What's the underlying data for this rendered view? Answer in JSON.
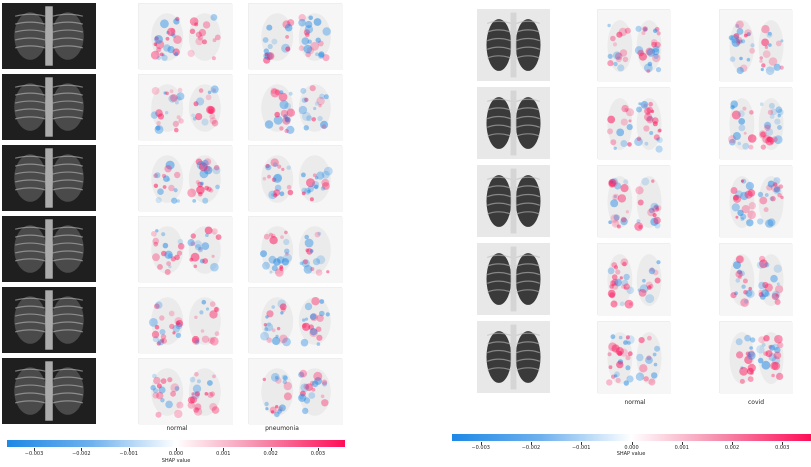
{
  "colors": {
    "negative": "#1e88e5",
    "positive": "#ff0d57",
    "neutral": "#ffffff"
  },
  "left_panel": {
    "rows": 6,
    "class_labels": [
      "normal",
      "pneumonia"
    ],
    "colorbar": {
      "ticks": [
        "−0.003",
        "−0.002",
        "−0.001",
        "0.000",
        "0.001",
        "0.002",
        "0.003"
      ],
      "axis_label": "SHAP value"
    }
  },
  "right_panel": {
    "rows": 5,
    "class_labels": [
      "normal",
      "covid"
    ],
    "colorbar": {
      "ticks": [
        "−0.003",
        "−0.002",
        "−0.001",
        "0.000",
        "0.001",
        "0.002",
        "0.003"
      ],
      "axis_label": "SHAP value"
    }
  }
}
